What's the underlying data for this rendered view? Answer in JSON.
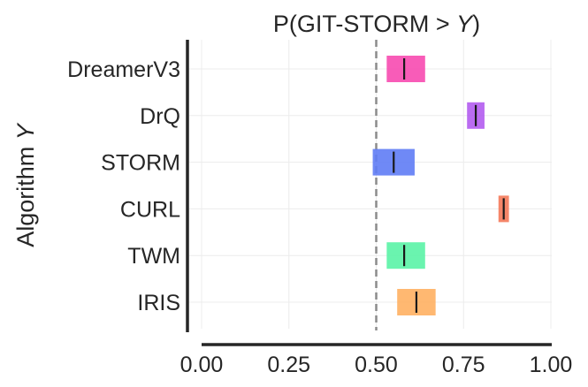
{
  "chart_data": {
    "type": "interval",
    "title": "P(GIT-STORM > ",
    "title_italic": "Y",
    "title_suffix": ")",
    "ylabel": "Algorithm ",
    "ylabel_italic": "Y",
    "xlabel": "",
    "xlim": [
      0.0,
      1.0
    ],
    "x_ticks": [
      "0.00",
      "0.25",
      "0.50",
      "0.75",
      "1.00"
    ],
    "x_tick_values": [
      0.0,
      0.25,
      0.5,
      0.75,
      1.0
    ],
    "reference_line": 0.5,
    "grid": true,
    "categories": [
      "DreamerV3",
      "DrQ",
      "STORM",
      "CURL",
      "TWM",
      "IRIS"
    ],
    "intervals": [
      {
        "name": "DreamerV3",
        "low": 0.53,
        "high": 0.64,
        "point": 0.58,
        "color": "#f74ab0"
      },
      {
        "name": "DrQ",
        "low": 0.76,
        "high": 0.81,
        "point": 0.785,
        "color": "#b35cf0"
      },
      {
        "name": "STORM",
        "low": 0.49,
        "high": 0.61,
        "point": 0.55,
        "color": "#5f7cf5"
      },
      {
        "name": "CURL",
        "low": 0.85,
        "high": 0.88,
        "point": 0.865,
        "color": "#f47959"
      },
      {
        "name": "TWM",
        "low": 0.53,
        "high": 0.64,
        "point": 0.58,
        "color": "#5af3a6"
      },
      {
        "name": "IRIS",
        "low": 0.56,
        "high": 0.67,
        "point": 0.615,
        "color": "#ffb062"
      }
    ]
  }
}
